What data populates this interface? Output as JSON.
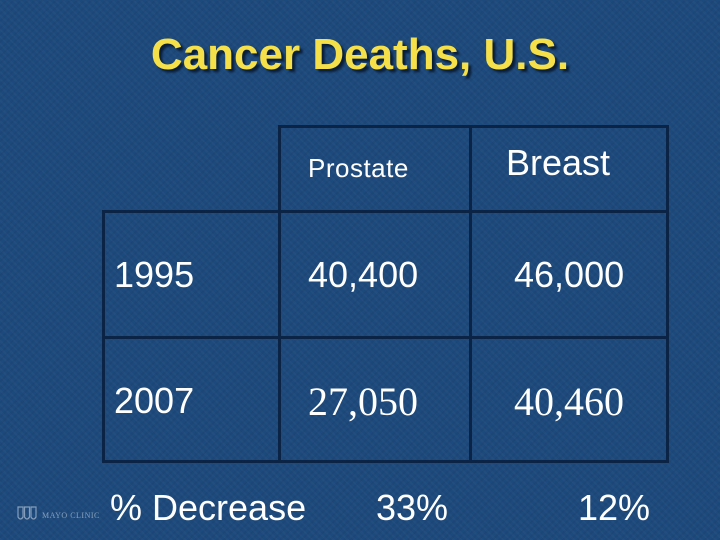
{
  "title": "Cancer Deaths, U.S.",
  "table": {
    "headers": [
      "Prostate",
      "Breast"
    ],
    "rows": [
      {
        "label": "1995",
        "prostate": "40,400",
        "breast": "46,000"
      },
      {
        "label": "2007",
        "prostate": "27,050",
        "breast": "40,460"
      }
    ],
    "footer": {
      "label": "% Decrease",
      "prostate": "33%",
      "breast": "12%"
    }
  },
  "logo": {
    "text": "MAYO CLINIC",
    "icon": "mayo-shield-icon"
  },
  "colors": {
    "background": "#1d4a7c",
    "title": "#f5e04a",
    "text": "#ffffff",
    "grid": "#0b2345"
  }
}
